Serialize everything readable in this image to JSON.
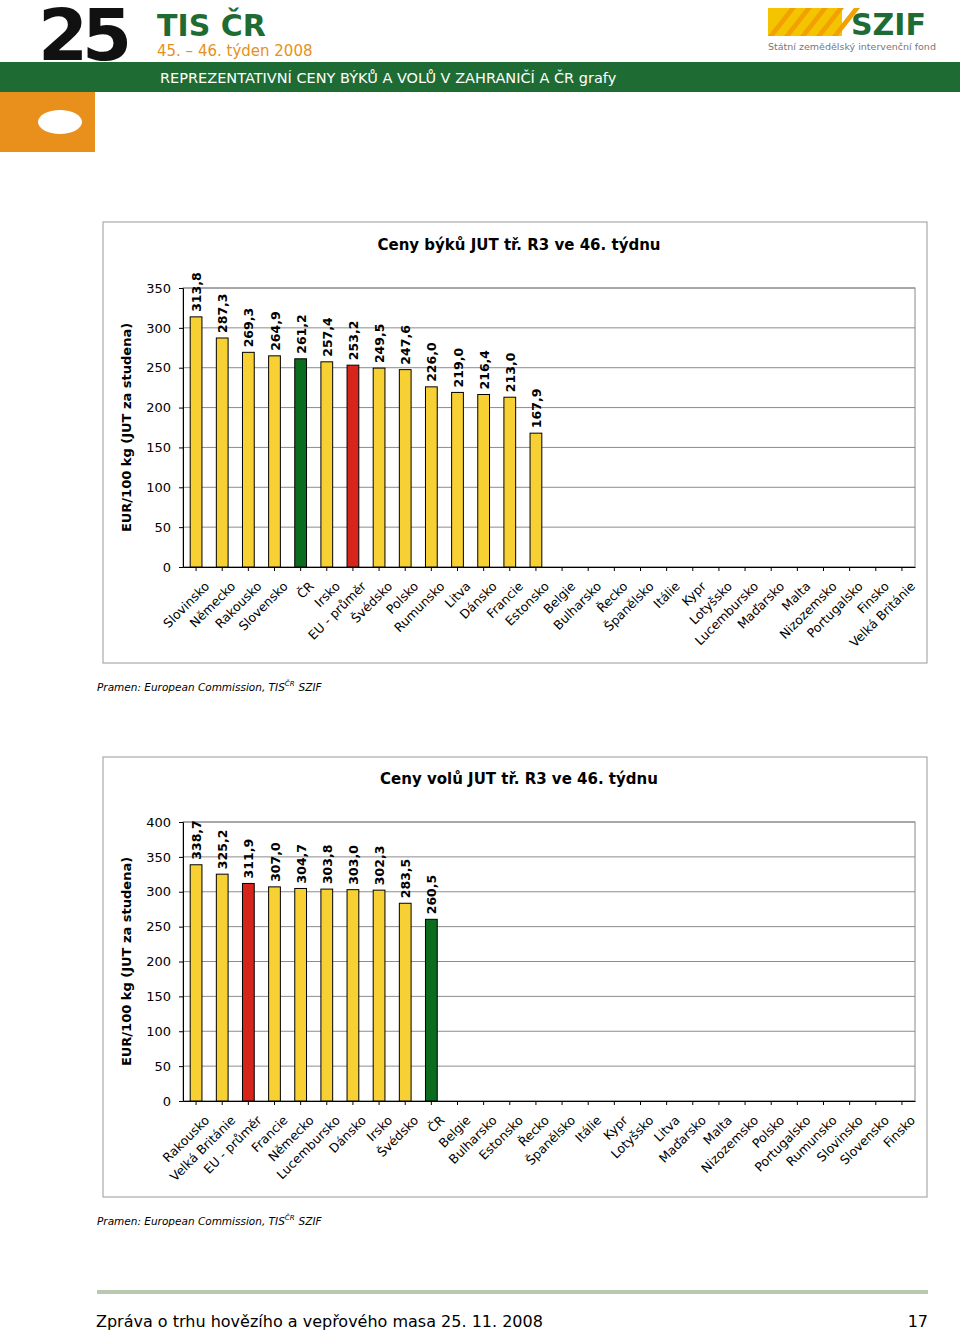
{
  "header": {
    "number": "25",
    "title": "TIS ČR",
    "week": "45. – 46. týden 2008",
    "logo": "SZIF",
    "logo_subtitle": "Státní zemědělský intervenční fond",
    "banner": "REPREZENTATIVNÍ CENY BÝKŮ A VOLŮ V ZAHRANIČÍ A ČR grafy"
  },
  "footer": {
    "text": "Zpráva o trhu hovězího a vepřového masa 25. 11. 2008",
    "page": "17"
  },
  "chart_data": [
    {
      "type": "bar",
      "title": "Ceny býků JUT tř. R3 ve 46. týdnu",
      "y_label": "EUR/100 kg (JUT za studena)",
      "categories": [
        "Slovinsko",
        "Německo",
        "Rakousko",
        "Slovensko",
        "ČR",
        "Irsko",
        "EU - průměr",
        "Švédsko",
        "Polsko",
        "Rumunsko",
        "Litva",
        "Dánsko",
        "Francie",
        "Estonsko",
        "Belgie",
        "Bulharsko",
        "Řecko",
        "Španělsko",
        "Itálie",
        "Kypr",
        "Lotyšsko",
        "Lucembursko",
        "Maďarsko",
        "Malta",
        "Nizozemsko",
        "Portugalsko",
        "Finsko",
        "Velká Británie"
      ],
      "values": [
        313.8,
        287.3,
        269.3,
        264.9,
        261.2,
        257.4,
        253.2,
        249.5,
        247.6,
        226.0,
        219.0,
        216.4,
        213.0,
        167.9,
        null,
        null,
        null,
        null,
        null,
        null,
        null,
        null,
        null,
        null,
        null,
        null,
        null,
        null
      ],
      "value_labels": [
        "313,8",
        "287,3",
        "269,3",
        "264,9",
        "261,2",
        "257,4",
        "253,2",
        "249,5",
        "247,6",
        "226,0",
        "219,0",
        "216,4",
        "213,0",
        "167,9",
        null,
        null,
        null,
        null,
        null,
        null,
        null,
        null,
        null,
        null,
        null,
        null,
        null,
        null
      ],
      "colors": [
        "#f7d034",
        "#f7d034",
        "#f7d034",
        "#f7d034",
        "#0b6b1e",
        "#f7d034",
        "#d6261c",
        "#f7d034",
        "#f7d034",
        "#f7d034",
        "#f7d034",
        "#f7d034",
        "#f7d034",
        "#f7d034",
        "#f7d034",
        "#f7d034",
        "#f7d034",
        "#f7d034",
        "#f7d034",
        "#f7d034",
        "#f7d034",
        "#f7d034",
        "#f7d034",
        "#f7d034",
        "#f7d034",
        "#f7d034",
        "#f7d034",
        "#f7d034"
      ],
      "ylim": [
        0,
        350
      ],
      "yticks": [
        0,
        50,
        100,
        150,
        200,
        250,
        300,
        350
      ],
      "grid": true,
      "data_labels": true,
      "source": [
        "Pramen: European Commission, TIS",
        "ČR",
        "SZIF"
      ]
    },
    {
      "type": "bar",
      "title": "Ceny volů JUT tř. R3 ve 46. týdnu",
      "y_label": "EUR/100 kg (JUT za studena)",
      "categories": [
        "Rakousko",
        "Velká Británie",
        "EU - průměr",
        "Francie",
        "Německo",
        "Lucembursko",
        "Dánsko",
        "Irsko",
        "Švédsko",
        "ČR",
        "Belgie",
        "Bulharsko",
        "Estonsko",
        "Řecko",
        "Španělsko",
        "Itálie",
        "Kypr",
        "Lotyšsko",
        "Litva",
        "Maďarsko",
        "Malta",
        "Nizozemsko",
        "Polsko",
        "Portugalsko",
        "Rumunsko",
        "Slovinsko",
        "Slovensko",
        "Finsko"
      ],
      "values": [
        338.7,
        325.2,
        311.9,
        307.0,
        304.7,
        303.8,
        303.0,
        302.3,
        283.5,
        260.5,
        null,
        null,
        null,
        null,
        null,
        null,
        null,
        null,
        null,
        null,
        null,
        null,
        null,
        null,
        null,
        null,
        null,
        null
      ],
      "value_labels": [
        "338,7",
        "325,2",
        "311,9",
        "307,0",
        "304,7",
        "303,8",
        "303,0",
        "302,3",
        "283,5",
        "260,5",
        null,
        null,
        null,
        null,
        null,
        null,
        null,
        null,
        null,
        null,
        null,
        null,
        null,
        null,
        null,
        null,
        null,
        null
      ],
      "colors": [
        "#f7d034",
        "#f7d034",
        "#d6261c",
        "#f7d034",
        "#f7d034",
        "#f7d034",
        "#f7d034",
        "#f7d034",
        "#f7d034",
        "#0b6b1e",
        "#f7d034",
        "#f7d034",
        "#f7d034",
        "#f7d034",
        "#f7d034",
        "#f7d034",
        "#f7d034",
        "#f7d034",
        "#f7d034",
        "#f7d034",
        "#f7d034",
        "#f7d034",
        "#f7d034",
        "#f7d034",
        "#f7d034",
        "#f7d034",
        "#f7d034",
        "#f7d034"
      ],
      "ylim": [
        0,
        400
      ],
      "yticks": [
        0,
        50,
        100,
        150,
        200,
        250,
        300,
        350,
        400
      ],
      "grid": true,
      "data_labels": true,
      "source": [
        "Pramen: European Commission, TIS",
        "ČR",
        "SZIF"
      ]
    }
  ]
}
